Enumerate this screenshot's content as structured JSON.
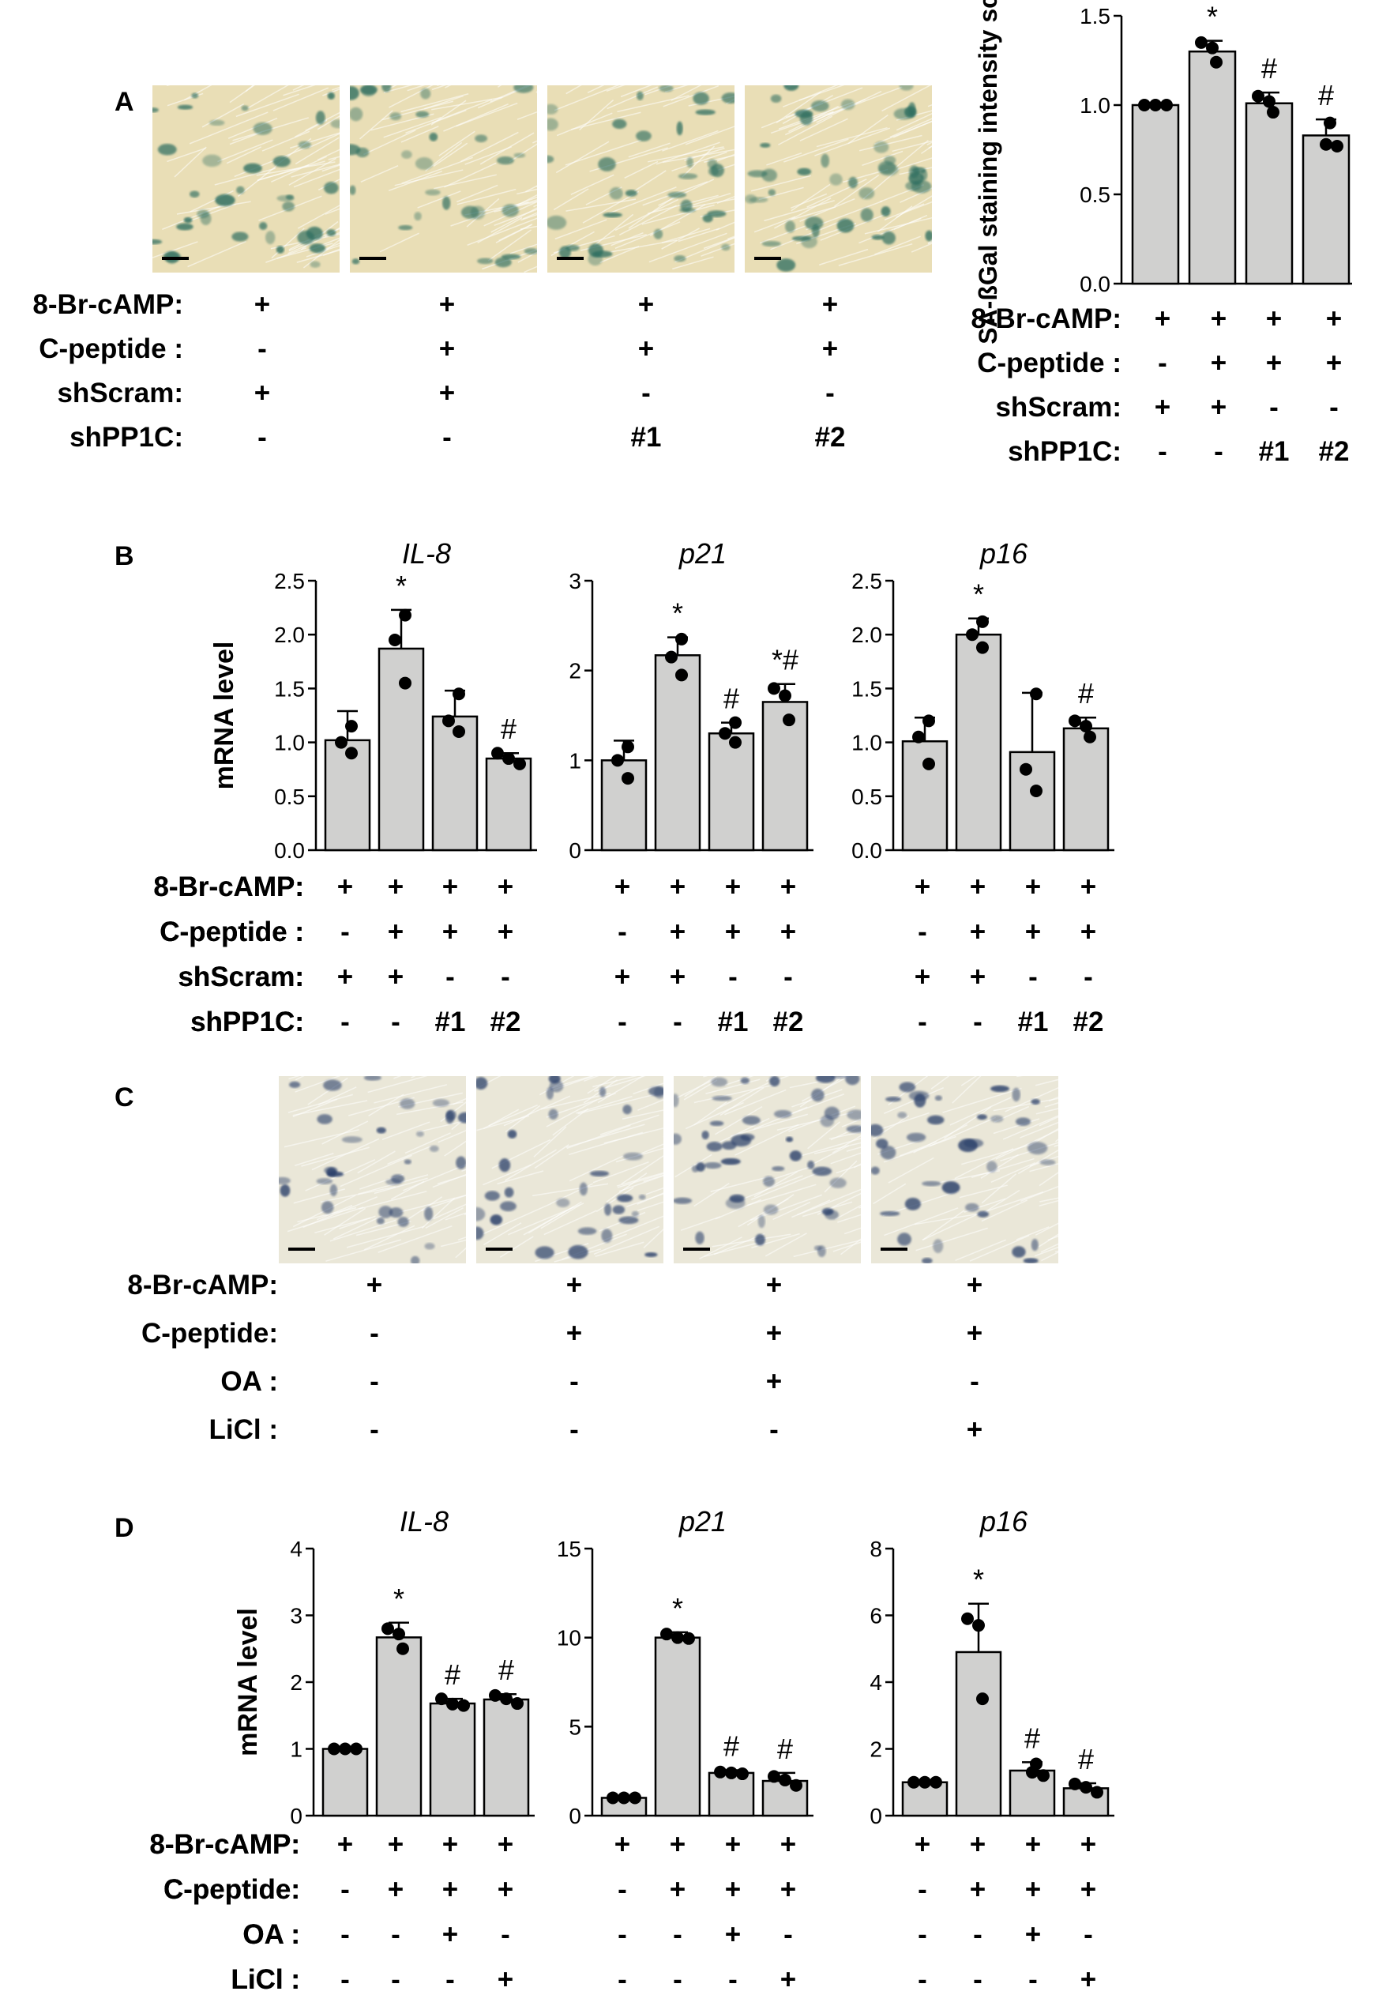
{
  "panels": [
    {
      "id": "A",
      "label": "A"
    },
    {
      "id": "B",
      "label": "B"
    },
    {
      "id": "C",
      "label": "C"
    },
    {
      "id": "D",
      "label": "D"
    }
  ],
  "photo_rows": [
    {
      "id": "A",
      "stain": "#2e6e60",
      "bg": "#e9deb6",
      "scale_bar": true
    },
    {
      "id": "C",
      "stain": "#2c3f6a",
      "bg": "#eae7d8",
      "scale_bar": true
    }
  ],
  "condition_tables": [
    {
      "id": "A-photos",
      "rows": [
        {
          "label": "8-Br-cAMP:",
          "values": [
            "+",
            "+",
            "+",
            "+"
          ]
        },
        {
          "label": "C-peptide :",
          "values": [
            "-",
            "+",
            "+",
            "+"
          ]
        },
        {
          "label": "shScram:",
          "values": [
            "+",
            "+",
            "-",
            "-"
          ]
        },
        {
          "label": "shPP1C:",
          "values": [
            "-",
            "-",
            "#1",
            "#2"
          ]
        }
      ]
    },
    {
      "id": "A-chart",
      "rows": [
        {
          "label": "8-Br-cAMP:",
          "values": [
            "+",
            "+",
            "+",
            "+"
          ]
        },
        {
          "label": "C-peptide :",
          "values": [
            "-",
            "+",
            "+",
            "+"
          ]
        },
        {
          "label": "shScram:",
          "values": [
            "+",
            "+",
            "-",
            "-"
          ]
        },
        {
          "label": "shPP1C:",
          "values": [
            "-",
            "-",
            "#1",
            "#2"
          ]
        }
      ]
    },
    {
      "id": "B",
      "rows": [
        {
          "label": "8-Br-cAMP:",
          "values": [
            "+",
            "+",
            "+",
            "+"
          ]
        },
        {
          "label": "C-peptide :",
          "values": [
            "-",
            "+",
            "+",
            "+"
          ]
        },
        {
          "label": "shScram:",
          "values": [
            "+",
            "+",
            "-",
            "-"
          ]
        },
        {
          "label": "shPP1C:",
          "values": [
            "-",
            "-",
            "#1",
            "#2"
          ]
        }
      ]
    },
    {
      "id": "C-photos",
      "rows": [
        {
          "label": "8-Br-cAMP:",
          "values": [
            "+",
            "+",
            "+",
            "+"
          ]
        },
        {
          "label": "C-peptide:",
          "values": [
            "-",
            "+",
            "+",
            "+"
          ]
        },
        {
          "label": "OA :",
          "values": [
            "-",
            "-",
            "+",
            "-"
          ]
        },
        {
          "label": "LiCl :",
          "values": [
            "-",
            "-",
            "-",
            "+"
          ]
        }
      ]
    },
    {
      "id": "D",
      "rows": [
        {
          "label": "8-Br-cAMP:",
          "values": [
            "+",
            "+",
            "+",
            "+"
          ]
        },
        {
          "label": "C-peptide:",
          "values": [
            "-",
            "+",
            "+",
            "+"
          ]
        },
        {
          "label": "OA :",
          "values": [
            "-",
            "-",
            "+",
            "-"
          ]
        },
        {
          "label": "LiCl :",
          "values": [
            "-",
            "-",
            "-",
            "+"
          ]
        }
      ]
    }
  ],
  "chart_data": [
    {
      "id": "A-sabgal",
      "type": "bar",
      "title": "",
      "ylabel": "SA-ßGal staining intensity score",
      "ylim": [
        0,
        1.5
      ],
      "yticks": [
        "0.0",
        "0.5",
        "1.0",
        "1.5"
      ],
      "yticks_v": [
        0,
        0.5,
        1,
        1.5
      ],
      "values": [
        1.0,
        1.3,
        1.01,
        0.83
      ],
      "errors": [
        0,
        0.06,
        0.06,
        0.09
      ],
      "points": [
        [
          1,
          1,
          1
        ],
        [
          1.35,
          1.32,
          1.24
        ],
        [
          1.05,
          1.02,
          0.96
        ],
        [
          0.9,
          0.78,
          0.77
        ]
      ],
      "annotations": [
        "",
        "*",
        "#",
        "#"
      ]
    },
    {
      "id": "B-IL8",
      "type": "bar",
      "title": "IL-8",
      "ylabel": "mRNA level",
      "ylim": [
        0,
        2.5
      ],
      "yticks": [
        "0.0",
        "0.5",
        "1.0",
        "1.5",
        "2.0",
        "2.5"
      ],
      "yticks_v": [
        0,
        0.5,
        1,
        1.5,
        2,
        2.5
      ],
      "values": [
        1.02,
        1.87,
        1.24,
        0.85
      ],
      "errors": [
        0.27,
        0.36,
        0.24,
        0.05
      ],
      "points": [
        [
          1.15,
          1.0,
          0.9
        ],
        [
          2.18,
          1.95,
          1.55
        ],
        [
          1.45,
          1.2,
          1.1
        ],
        [
          0.9,
          0.85,
          0.8
        ]
      ],
      "annotations": [
        "",
        "*",
        "",
        "#"
      ]
    },
    {
      "id": "B-p21",
      "type": "bar",
      "title": "p21",
      "ylabel": "",
      "ylim": [
        0,
        3
      ],
      "yticks": [
        "0",
        "1",
        "2",
        "3"
      ],
      "yticks_v": [
        0,
        1,
        2,
        3
      ],
      "values": [
        1.0,
        2.17,
        1.3,
        1.65
      ],
      "errors": [
        0.22,
        0.2,
        0.12,
        0.2
      ],
      "points": [
        [
          1.15,
          1.0,
          0.8
        ],
        [
          2.35,
          2.15,
          1.95
        ],
        [
          1.42,
          1.3,
          1.2
        ],
        [
          1.8,
          1.72,
          1.45
        ]
      ],
      "annotations": [
        "",
        "*",
        "#",
        "*#"
      ]
    },
    {
      "id": "B-p16",
      "type": "bar",
      "title": "p16",
      "ylabel": "",
      "ylim": [
        0,
        2.5
      ],
      "yticks": [
        "0.0",
        "0.5",
        "1.0",
        "1.5",
        "2.0",
        "2.5"
      ],
      "yticks_v": [
        0,
        0.5,
        1,
        1.5,
        2,
        2.5
      ],
      "values": [
        1.01,
        2.0,
        0.91,
        1.13
      ],
      "errors": [
        0.22,
        0.15,
        0.55,
        0.1
      ],
      "points": [
        [
          1.2,
          1.05,
          0.8
        ],
        [
          2.12,
          2.0,
          1.88
        ],
        [
          1.45,
          0.75,
          0.55
        ],
        [
          1.2,
          1.15,
          1.05
        ]
      ],
      "annotations": [
        "",
        "*",
        "",
        "#"
      ]
    },
    {
      "id": "D-IL8",
      "type": "bar",
      "title": "IL-8",
      "ylabel": "mRNA level",
      "ylim": [
        0,
        4
      ],
      "yticks": [
        "0",
        "1",
        "2",
        "3",
        "4"
      ],
      "yticks_v": [
        0,
        1,
        2,
        3,
        4
      ],
      "values": [
        1.0,
        2.67,
        1.68,
        1.74
      ],
      "errors": [
        0,
        0.22,
        0.07,
        0.08
      ],
      "points": [
        [
          1,
          1,
          1
        ],
        [
          2.8,
          2.72,
          2.5
        ],
        [
          1.75,
          1.67,
          1.65
        ],
        [
          1.8,
          1.75,
          1.68
        ]
      ],
      "annotations": [
        "",
        "*",
        "#",
        "#"
      ]
    },
    {
      "id": "D-p21",
      "type": "bar",
      "title": "p21",
      "ylabel": "",
      "ylim": [
        0,
        15
      ],
      "yticks": [
        "0",
        "5",
        "10",
        "15"
      ],
      "yticks_v": [
        0,
        5,
        10,
        15
      ],
      "values": [
        1.0,
        10.0,
        2.4,
        1.95
      ],
      "errors": [
        0,
        0.3,
        0.15,
        0.45
      ],
      "points": [
        [
          1,
          1,
          1
        ],
        [
          10.2,
          10.0,
          9.95
        ],
        [
          2.45,
          2.4,
          2.35
        ],
        [
          2.2,
          2.0,
          1.7
        ]
      ],
      "annotations": [
        "",
        "*",
        "#",
        "#"
      ]
    },
    {
      "id": "D-p16",
      "type": "bar",
      "title": "p16",
      "ylabel": "",
      "ylim": [
        0,
        8
      ],
      "yticks": [
        "0",
        "2",
        "4",
        "6",
        "8"
      ],
      "yticks_v": [
        0,
        2,
        4,
        6,
        8
      ],
      "values": [
        1.0,
        4.9,
        1.35,
        0.82
      ],
      "errors": [
        0,
        1.45,
        0.25,
        0.15
      ],
      "points": [
        [
          1,
          1,
          1
        ],
        [
          5.9,
          5.7,
          3.5
        ],
        [
          1.55,
          1.3,
          1.2
        ],
        [
          0.95,
          0.85,
          0.7
        ]
      ],
      "annotations": [
        "",
        "*",
        "#",
        "#"
      ]
    }
  ]
}
